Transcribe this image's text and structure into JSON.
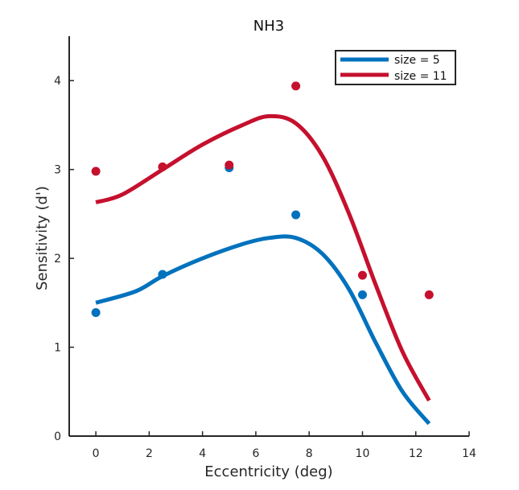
{
  "chart_data": {
    "type": "scatter",
    "title": "NH3",
    "xlabel": "Eccentricity (deg)",
    "ylabel": "Sensitivity (d')",
    "xlim": [
      -1,
      14
    ],
    "ylim": [
      0,
      4.5
    ],
    "xticks": [
      0,
      2,
      4,
      6,
      8,
      10,
      12,
      14
    ],
    "yticks": [
      0,
      1,
      2,
      3,
      4
    ],
    "grid": false,
    "legend_position": "top-right",
    "series": [
      {
        "name": "size = 5",
        "color": "#0072bd",
        "points": [
          {
            "x": 0,
            "y": 1.39
          },
          {
            "x": 2.5,
            "y": 1.82
          },
          {
            "x": 5,
            "y": 3.02
          },
          {
            "x": 7.5,
            "y": 2.49
          },
          {
            "x": 10,
            "y": 1.59
          }
        ],
        "fit": [
          {
            "x": 0,
            "y": 1.5
          },
          {
            "x": 1.5,
            "y": 1.63
          },
          {
            "x": 2.5,
            "y": 1.8
          },
          {
            "x": 4,
            "y": 2.0
          },
          {
            "x": 5.5,
            "y": 2.16
          },
          {
            "x": 6.5,
            "y": 2.23
          },
          {
            "x": 7.5,
            "y": 2.23
          },
          {
            "x": 8.5,
            "y": 2.05
          },
          {
            "x": 9.5,
            "y": 1.65
          },
          {
            "x": 10.5,
            "y": 1.05
          },
          {
            "x": 11.5,
            "y": 0.5
          },
          {
            "x": 12.5,
            "y": 0.14
          }
        ]
      },
      {
        "name": "size = 11",
        "color": "#c5102e",
        "points": [
          {
            "x": 0,
            "y": 2.98
          },
          {
            "x": 2.5,
            "y": 3.03
          },
          {
            "x": 5,
            "y": 3.05
          },
          {
            "x": 7.5,
            "y": 3.94
          },
          {
            "x": 10,
            "y": 1.81
          },
          {
            "x": 12.5,
            "y": 1.59
          }
        ],
        "fit": [
          {
            "x": 0,
            "y": 2.63
          },
          {
            "x": 1,
            "y": 2.72
          },
          {
            "x": 2.5,
            "y": 3.0
          },
          {
            "x": 4,
            "y": 3.28
          },
          {
            "x": 5.5,
            "y": 3.5
          },
          {
            "x": 6.5,
            "y": 3.6
          },
          {
            "x": 7.5,
            "y": 3.52
          },
          {
            "x": 8.5,
            "y": 3.15
          },
          {
            "x": 9.5,
            "y": 2.5
          },
          {
            "x": 10.5,
            "y": 1.7
          },
          {
            "x": 11.5,
            "y": 0.95
          },
          {
            "x": 12.5,
            "y": 0.4
          }
        ]
      }
    ]
  }
}
